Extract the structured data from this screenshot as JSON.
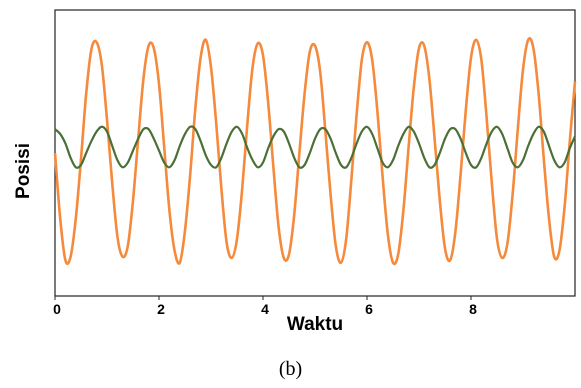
{
  "chart_data": {
    "type": "line",
    "title": "",
    "xlabel": "Waktu",
    "ylabel": "Posisi",
    "xlim": [
      0,
      10
    ],
    "ylim": [
      -1.2,
      1.2
    ],
    "xticks": [
      "0",
      "2",
      "4",
      "6",
      "8"
    ],
    "grid": false,
    "series": [
      {
        "color": "#f58a3c",
        "x": [
          0,
          0.1,
          0.2,
          0.3,
          0.4,
          0.5,
          0.6,
          0.7,
          0.8,
          0.9,
          1.0,
          1.1,
          1.2,
          1.3,
          1.4,
          1.5,
          1.6,
          1.7,
          1.8,
          1.9,
          2.0,
          2.1,
          2.2,
          2.3,
          2.4,
          2.5,
          2.6,
          2.7,
          2.8,
          2.9,
          3.0,
          3.1,
          3.2,
          3.3,
          3.4,
          3.5,
          3.6,
          3.7,
          3.8,
          3.9,
          4.0,
          4.1,
          4.2,
          4.3,
          4.4,
          4.5,
          4.6,
          4.7,
          4.8,
          4.9,
          5.0,
          5.1,
          5.2,
          5.3,
          5.4,
          5.5,
          5.6,
          5.7,
          5.8,
          5.9,
          6.0,
          6.1,
          6.2,
          6.3,
          6.4,
          6.5,
          6.6,
          6.7,
          6.8,
          6.9,
          7.0,
          7.1,
          7.2,
          7.3,
          7.4,
          7.5,
          7.6,
          7.7,
          7.8,
          7.9,
          8.0,
          8.1,
          8.2,
          8.3,
          8.4,
          8.5,
          8.6,
          8.7,
          8.8,
          8.9,
          9.0,
          9.1,
          9.2,
          9.3,
          9.4,
          9.5,
          9.6,
          9.7,
          9.8,
          9.9,
          10.0
        ],
        "y": [
          0.0,
          -0.55,
          -0.9,
          -0.87,
          -0.55,
          -0.05,
          0.5,
          0.87,
          0.93,
          0.74,
          0.28,
          -0.25,
          -0.7,
          -0.87,
          -0.78,
          -0.4,
          0.12,
          0.62,
          0.9,
          0.88,
          0.58,
          0.05,
          -0.48,
          -0.82,
          -0.92,
          -0.65,
          -0.18,
          0.38,
          0.8,
          0.95,
          0.72,
          0.25,
          -0.3,
          -0.75,
          -0.88,
          -0.72,
          -0.3,
          0.25,
          0.72,
          0.92,
          0.82,
          0.42,
          -0.12,
          -0.62,
          -0.88,
          -0.85,
          -0.52,
          0.0,
          0.5,
          0.85,
          0.9,
          0.68,
          0.18,
          -0.35,
          -0.78,
          -0.92,
          -0.72,
          -0.22,
          0.32,
          0.78,
          0.93,
          0.78,
          0.35,
          -0.2,
          -0.68,
          -0.92,
          -0.85,
          -0.48,
          0.05,
          0.55,
          0.88,
          0.9,
          0.62,
          0.12,
          -0.4,
          -0.8,
          -0.9,
          -0.66,
          -0.18,
          0.36,
          0.8,
          0.95,
          0.78,
          0.3,
          -0.25,
          -0.72,
          -0.88,
          -0.76,
          -0.35,
          0.2,
          0.7,
          0.95,
          0.88,
          0.5,
          -0.05,
          -0.55,
          -0.87,
          -0.82,
          -0.45,
          0.1,
          0.6
        ]
      },
      {
        "color": "#4a7036",
        "x": [
          0,
          0.1,
          0.2,
          0.3,
          0.4,
          0.5,
          0.6,
          0.7,
          0.8,
          0.9,
          1.0,
          1.1,
          1.2,
          1.3,
          1.4,
          1.5,
          1.6,
          1.7,
          1.8,
          1.9,
          2.0,
          2.1,
          2.2,
          2.3,
          2.4,
          2.5,
          2.6,
          2.7,
          2.8,
          2.9,
          3.0,
          3.1,
          3.2,
          3.3,
          3.4,
          3.5,
          3.6,
          3.7,
          3.8,
          3.9,
          4.0,
          4.1,
          4.2,
          4.3,
          4.4,
          4.5,
          4.6,
          4.7,
          4.8,
          4.9,
          5.0,
          5.1,
          5.2,
          5.3,
          5.4,
          5.5,
          5.6,
          5.7,
          5.8,
          5.9,
          6.0,
          6.1,
          6.2,
          6.3,
          6.4,
          6.5,
          6.6,
          6.7,
          6.8,
          6.9,
          7.0,
          7.1,
          7.2,
          7.3,
          7.4,
          7.5,
          7.6,
          7.7,
          7.8,
          7.9,
          8.0,
          8.1,
          8.2,
          8.3,
          8.4,
          8.5,
          8.6,
          8.7,
          8.8,
          8.9,
          9.0,
          9.1,
          9.2,
          9.3,
          9.4,
          9.5,
          9.6,
          9.7,
          9.8,
          9.9,
          10.0
        ],
        "y": [
          0.2,
          0.16,
          0.08,
          -0.04,
          -0.12,
          -0.1,
          0.0,
          0.1,
          0.18,
          0.22,
          0.18,
          0.06,
          -0.06,
          -0.12,
          -0.08,
          0.02,
          0.12,
          0.2,
          0.2,
          0.12,
          0.02,
          -0.08,
          -0.12,
          -0.06,
          0.06,
          0.16,
          0.22,
          0.2,
          0.1,
          -0.02,
          -0.1,
          -0.12,
          -0.04,
          0.08,
          0.18,
          0.22,
          0.16,
          0.04,
          -0.06,
          -0.12,
          -0.08,
          0.04,
          0.14,
          0.2,
          0.18,
          0.08,
          -0.04,
          -0.12,
          -0.1,
          0.0,
          0.12,
          0.2,
          0.2,
          0.12,
          0.0,
          -0.1,
          -0.12,
          -0.04,
          0.08,
          0.18,
          0.22,
          0.16,
          0.04,
          -0.08,
          -0.12,
          -0.06,
          0.06,
          0.16,
          0.22,
          0.18,
          0.08,
          -0.04,
          -0.12,
          -0.1,
          0.0,
          0.12,
          0.2,
          0.2,
          0.12,
          0.0,
          -0.1,
          -0.12,
          -0.04,
          0.08,
          0.18,
          0.22,
          0.16,
          0.04,
          -0.08,
          -0.12,
          -0.06,
          0.06,
          0.16,
          0.22,
          0.18,
          0.06,
          -0.06,
          -0.12,
          -0.08,
          0.04,
          0.14
        ]
      }
    ]
  },
  "caption": "(b)"
}
